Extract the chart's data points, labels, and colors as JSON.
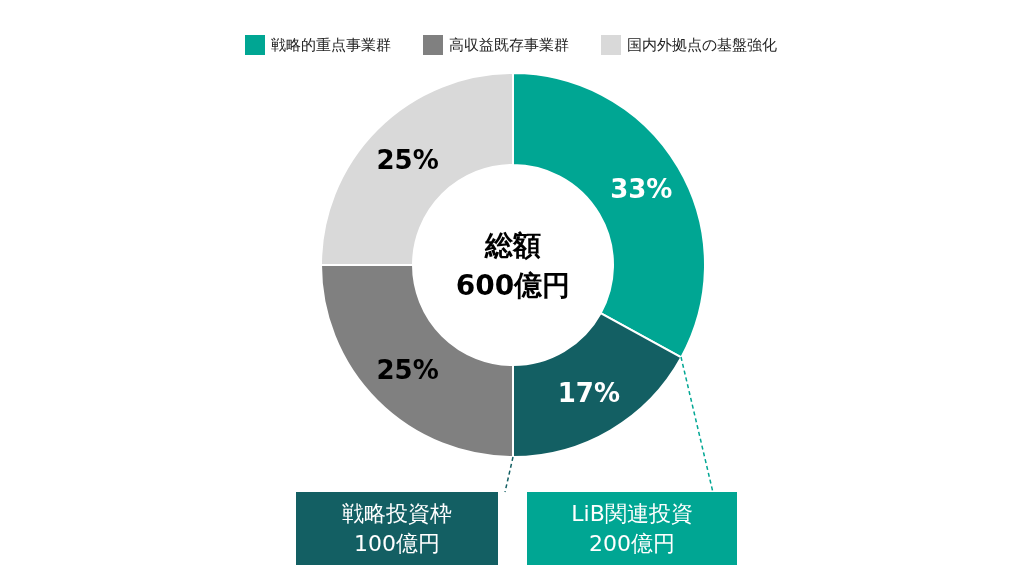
{
  "chart_data": {
    "type": "donut",
    "categories": [
      "戦略的重点事業群",
      null,
      "高収益既存事業群",
      "国内外拠点の基盤強化"
    ],
    "values": [
      33,
      17,
      25,
      25
    ],
    "colors": [
      "#00a693",
      "#135f63",
      "#808080",
      "#d9d9d9"
    ],
    "value_labels": [
      "33%",
      "17%",
      "25%",
      "25%"
    ],
    "legend": "top",
    "annotations": [
      "総額\n600億円",
      "戦略投資枠\n100億円",
      "LiB関連投資\n200億円"
    ]
  }
}
